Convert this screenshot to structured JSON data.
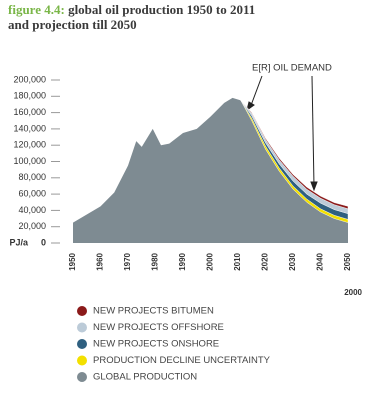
{
  "chart_data": {
    "type": "stacked-area",
    "figure_label": "figure 4.4:",
    "title": "global oil production 1950 to 2011 and projection till 2050",
    "y_label": "PJ/a",
    "annotation": "E[R] OIL DEMAND",
    "corner_label": "2000",
    "x": [
      1950,
      1955,
      1960,
      1965,
      1970,
      1973,
      1975,
      1979,
      1982,
      1985,
      1990,
      1995,
      2000,
      2005,
      2008,
      2011,
      2015,
      2020,
      2025,
      2030,
      2035,
      2040,
      2045,
      2050
    ],
    "series": [
      {
        "name": "NEW PROJECTS BITUMEN",
        "color": "#8b1a1a",
        "values": [
          null,
          null,
          null,
          null,
          null,
          null,
          null,
          null,
          null,
          null,
          null,
          null,
          null,
          null,
          null,
          0,
          1000,
          1500,
          2000,
          2000,
          2500,
          2500,
          2500,
          3000
        ]
      },
      {
        "name": "NEW PROJECTS OFFSHORE",
        "color": "#bccbd8",
        "values": [
          null,
          null,
          null,
          null,
          null,
          null,
          null,
          null,
          null,
          null,
          null,
          null,
          null,
          null,
          null,
          0,
          3000,
          4000,
          5000,
          6000,
          6000,
          6000,
          6000,
          6000
        ]
      },
      {
        "name": "NEW PROJECTS ONSHORE",
        "color": "#2f6080",
        "values": [
          null,
          null,
          null,
          null,
          null,
          null,
          null,
          null,
          null,
          null,
          null,
          null,
          null,
          null,
          null,
          0,
          3000,
          4000,
          5000,
          6000,
          6000,
          7000,
          7000,
          7000
        ]
      },
      {
        "name": "PRODUCTION DECLINE UNCERTAINTY",
        "color": "#f3e000",
        "values": [
          null,
          null,
          null,
          null,
          null,
          null,
          null,
          null,
          null,
          null,
          null,
          null,
          null,
          null,
          null,
          0,
          3000,
          4000,
          4000,
          4000,
          4000,
          4000,
          4000,
          4000
        ]
      },
      {
        "name": "GLOBAL PRODUCTION",
        "color": "#7e8b92",
        "values": [
          25000,
          35000,
          45000,
          62000,
          95000,
          125000,
          118000,
          140000,
          120000,
          122000,
          135000,
          140000,
          155000,
          172000,
          178000,
          175000,
          150000,
          115000,
          88000,
          66000,
          50000,
          38000,
          30000,
          25000
        ]
      }
    ],
    "xlim": [
      1950,
      2050
    ],
    "xticks": [
      1950,
      1960,
      1970,
      1980,
      1990,
      2000,
      2010,
      2020,
      2030,
      2040,
      2050
    ],
    "ylim": [
      0,
      200000
    ],
    "yticks": [
      0,
      {
        "value": 20000,
        "label": "20,000"
      },
      {
        "value": 40000,
        "label": "40,000"
      },
      {
        "value": 60000,
        "label": "60,000"
      },
      {
        "value": 80000,
        "label": "80,000"
      },
      {
        "value": 100000,
        "label": "100,000"
      },
      {
        "value": 120000,
        "label": "120,000"
      },
      {
        "value": 140000,
        "label": "140,000"
      },
      {
        "value": 160000,
        "label": "160,000"
      },
      {
        "value": 180000,
        "label": "180,000"
      },
      {
        "value": 200000,
        "label": "200,000"
      }
    ]
  }
}
